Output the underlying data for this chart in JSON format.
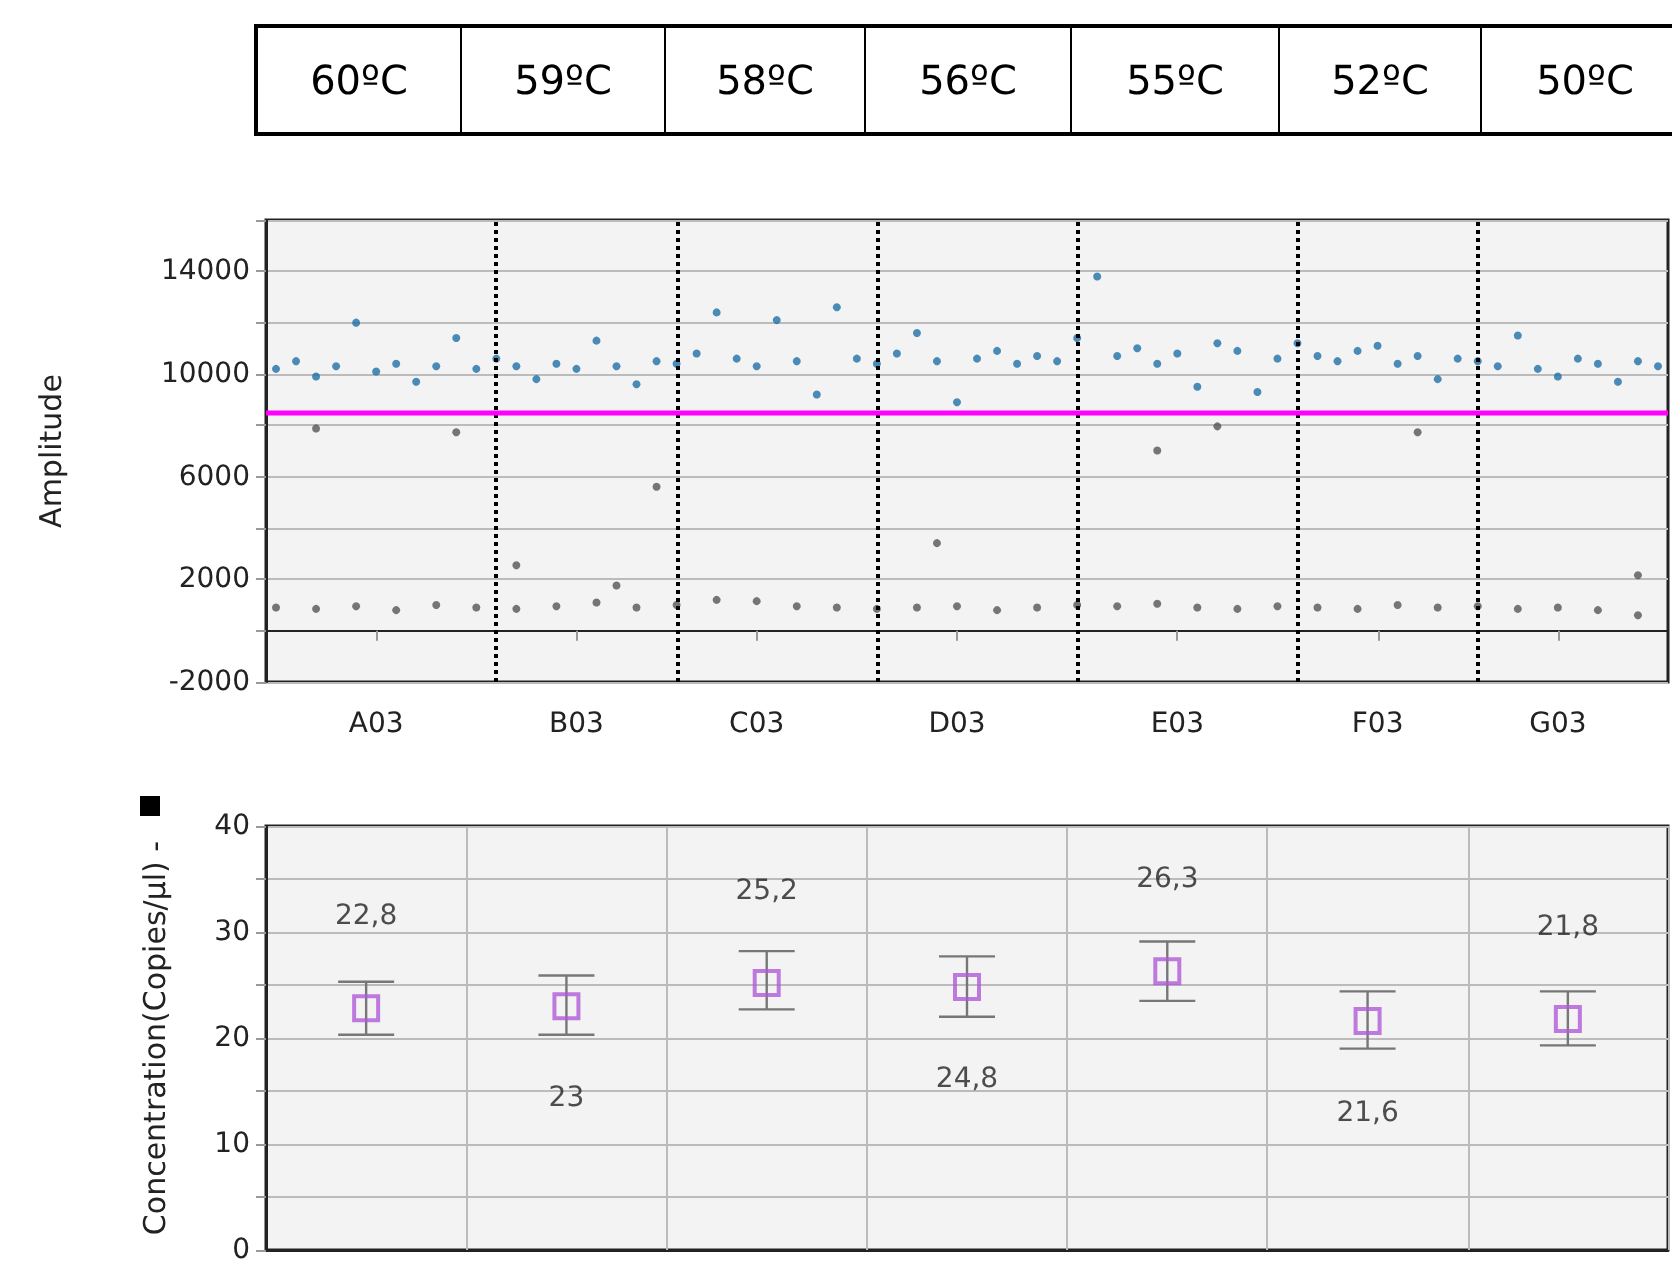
{
  "chart_data": [
    {
      "type": "other",
      "annotations": [
        "60ºC",
        "59ºC",
        "58ºC",
        "56ºC",
        "55ºC",
        "52ºC",
        "50ºC"
      ]
    },
    {
      "type": "scatter",
      "ylabel": "Amplitude",
      "categories": [
        null,
        null,
        null,
        null,
        null,
        "A03",
        null,
        null,
        null,
        null,
        null,
        null,
        null,
        null,
        null,
        "B03",
        null,
        null,
        null,
        null,
        null,
        null,
        null,
        null,
        "C03",
        null,
        null,
        null,
        null,
        null,
        null,
        null,
        null,
        null,
        "D03",
        null,
        null,
        null,
        null,
        null,
        null,
        null,
        null,
        null,
        null,
        "E03",
        null,
        null,
        null,
        null,
        null,
        null,
        null,
        null,
        null,
        "F03",
        null,
        null,
        null,
        null,
        null,
        null,
        null,
        null,
        "G03",
        null,
        null,
        null,
        null,
        null
      ],
      "ylim": [
        -2000,
        16000
      ],
      "yticks": [
        -2000,
        {
          "value": 0,
          "label": null
        },
        2000,
        {
          "value": 4000,
          "label": null
        },
        6000,
        {
          "value": 8000,
          "label": null
        },
        10000,
        {
          "value": 12000,
          "label": null
        },
        14000
      ],
      "grid": "y",
      "marker": "circle",
      "ref_lines": [
        {
          "axis": "y",
          "value": 8500,
          "color": "#ff00ff",
          "line_style": "solid"
        }
      ],
      "series": [
        {
          "color": "#1f6fa8",
          "values": [
            10200,
            10500,
            9900,
            10300,
            12000,
            10100,
            10400,
            9700,
            10300,
            11400,
            10200,
            10600,
            10300,
            9800,
            10400,
            10200,
            11300,
            10300,
            9600,
            10500,
            10400,
            10800,
            12400,
            10600,
            10300,
            12100,
            10500,
            9200,
            12600,
            10600,
            10400,
            10800,
            11600,
            10500,
            8900,
            10600,
            10900,
            10400,
            10700,
            10500,
            11400,
            13800,
            10700,
            11000,
            10400,
            10800,
            9500,
            11200,
            10900,
            9300,
            10600,
            11200,
            10700,
            10500,
            10900,
            11100,
            10400,
            10700,
            9800,
            10600,
            10500,
            10300,
            11500,
            10200,
            9900,
            10600,
            10400,
            9700,
            10500,
            10300
          ]
        },
        {
          "color": "#555555",
          "values": [
            900,
            null,
            850,
            null,
            950,
            null,
            800,
            null,
            1000,
            null,
            900,
            null,
            850,
            null,
            950,
            null,
            1100,
            null,
            900,
            null,
            1000,
            null,
            1200,
            null,
            1150,
            null,
            950,
            null,
            900,
            null,
            850,
            null,
            900,
            null,
            950,
            null,
            800,
            null,
            900,
            null,
            1000,
            null,
            950,
            null,
            1050,
            null,
            900,
            null,
            850,
            null,
            950,
            null,
            900,
            null,
            850,
            null,
            1000,
            null,
            900,
            null,
            950,
            null,
            850,
            null,
            900,
            null,
            800,
            null,
            600,
            null
          ]
        },
        {
          "color": "#555555",
          "values": [
            null,
            null,
            7880,
            null,
            null,
            null,
            null,
            null,
            null,
            7730,
            null,
            null,
            2550,
            null,
            null,
            null,
            null,
            1760,
            null,
            5610,
            null,
            null,
            null,
            null,
            null,
            null,
            null,
            null,
            null,
            null,
            null,
            null,
            null,
            3410,
            null,
            null,
            null,
            null,
            null,
            null,
            null,
            null,
            null,
            null,
            7020,
            null,
            null,
            7960,
            null,
            null,
            null,
            null,
            null,
            null,
            null,
            null,
            null,
            7730,
            null,
            null,
            null,
            null,
            null,
            null,
            null,
            null,
            null,
            null,
            2160,
            null
          ]
        }
      ]
    },
    {
      "type": "scatter",
      "ylabel": "Concentration(Copies/µl) -",
      "categories": [
        null,
        null,
        null,
        null,
        null,
        null,
        null
      ],
      "tick_labels": "y",
      "ylim": [
        0,
        40
      ],
      "yticks": [
        0,
        {
          "value": 5,
          "label": null
        },
        10,
        {
          "value": 15,
          "label": null
        },
        20,
        {
          "value": 25,
          "label": null
        },
        30,
        {
          "value": 35,
          "label": null
        },
        40
      ],
      "grid": true,
      "marker": "square",
      "series": [
        {
          "color": "#b05ad8",
          "values": [
            22.8,
            23,
            25.2,
            24.8,
            26.3,
            21.6,
            21.8
          ],
          "value_labels": [
            "22,8",
            "23",
            "25,2",
            "24,8",
            "26,3",
            "21,6",
            "21,8"
          ],
          "errors": [
            [
              20.3,
              25.3
            ],
            [
              20.3,
              25.9
            ],
            [
              22.7,
              28.2
            ],
            [
              22,
              27.7
            ],
            [
              23.5,
              29.1
            ],
            [
              19,
              24.4
            ],
            [
              19.3,
              24.4
            ]
          ]
        }
      ]
    }
  ]
}
